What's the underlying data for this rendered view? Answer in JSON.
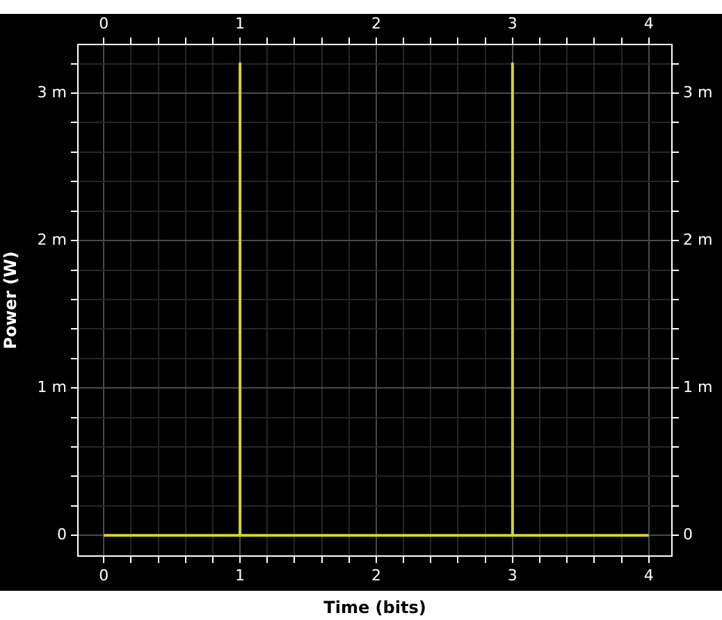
{
  "chart_data": {
    "type": "line",
    "xlabel": "Time (bits)",
    "ylabel": "Power (W)",
    "series": [
      {
        "color": "#d2d23c",
        "x": [
          0,
          1,
          1,
          1,
          3,
          3,
          3,
          4
        ],
        "values": [
          0,
          0,
          3.2,
          0,
          0,
          3.2,
          0,
          0
        ]
      }
    ],
    "xlim": [
      -0.19,
      4.17
    ],
    "xticks": [
      0,
      {
        "value": 0.2,
        "label": null
      },
      {
        "value": 0.4,
        "label": null
      },
      {
        "value": 0.6,
        "label": null
      },
      {
        "value": 0.8,
        "label": null
      },
      1,
      {
        "value": 1.2,
        "label": null
      },
      {
        "value": 1.4,
        "label": null
      },
      {
        "value": 1.6,
        "label": null
      },
      {
        "value": 1.8,
        "label": null
      },
      2,
      {
        "value": 2.2,
        "label": null
      },
      {
        "value": 2.4,
        "label": null
      },
      {
        "value": 2.6,
        "label": null
      },
      {
        "value": 2.8,
        "label": null
      },
      3,
      {
        "value": 3.2,
        "label": null
      },
      {
        "value": 3.4,
        "label": null
      },
      {
        "value": 3.6,
        "label": null
      },
      {
        "value": 3.8,
        "label": null
      },
      4
    ],
    "x2lim": [
      -0.19,
      4.17
    ],
    "x2ticks": [
      0,
      {
        "value": 0.2,
        "label": null
      },
      {
        "value": 0.4,
        "label": null
      },
      {
        "value": 0.6,
        "label": null
      },
      {
        "value": 0.8,
        "label": null
      },
      1,
      {
        "value": 1.2,
        "label": null
      },
      {
        "value": 1.4,
        "label": null
      },
      {
        "value": 1.6,
        "label": null
      },
      {
        "value": 1.8,
        "label": null
      },
      2,
      {
        "value": 2.2,
        "label": null
      },
      {
        "value": 2.4,
        "label": null
      },
      {
        "value": 2.6,
        "label": null
      },
      {
        "value": 2.8,
        "label": null
      },
      3,
      {
        "value": 3.2,
        "label": null
      },
      {
        "value": 3.4,
        "label": null
      },
      {
        "value": 3.6,
        "label": null
      },
      {
        "value": 3.8,
        "label": null
      },
      4
    ],
    "ylim": [
      -0.14,
      3.33
    ],
    "yticks": [
      0,
      {
        "value": 0.2,
        "label": null
      },
      {
        "value": 0.4,
        "label": null
      },
      {
        "value": 0.6,
        "label": null
      },
      {
        "value": 0.8,
        "label": null
      },
      {
        "value": 1,
        "label": "1 m"
      },
      {
        "value": 1.2,
        "label": null
      },
      {
        "value": 1.4,
        "label": null
      },
      {
        "value": 1.6,
        "label": null
      },
      {
        "value": 1.8,
        "label": null
      },
      {
        "value": 2,
        "label": "2 m"
      },
      {
        "value": 2.2,
        "label": null
      },
      {
        "value": 2.4,
        "label": null
      },
      {
        "value": 2.6,
        "label": null
      },
      {
        "value": 2.8,
        "label": null
      },
      {
        "value": 3,
        "label": "3 m"
      },
      {
        "value": 3.2,
        "label": null
      }
    ],
    "y2lim": [
      -0.14,
      3.33
    ],
    "y2ticks": [
      0,
      {
        "value": 0.2,
        "label": null
      },
      {
        "value": 0.4,
        "label": null
      },
      {
        "value": 0.6,
        "label": null
      },
      {
        "value": 0.8,
        "label": null
      },
      {
        "value": 1,
        "label": "1 m"
      },
      {
        "value": 1.2,
        "label": null
      },
      {
        "value": 1.4,
        "label": null
      },
      {
        "value": 1.6,
        "label": null
      },
      {
        "value": 1.8,
        "label": null
      },
      {
        "value": 2,
        "label": "2 m"
      },
      {
        "value": 2.2,
        "label": null
      },
      {
        "value": 2.4,
        "label": null
      },
      {
        "value": 2.6,
        "label": null
      },
      {
        "value": 2.8,
        "label": null
      },
      {
        "value": 3,
        "label": "3 m"
      },
      {
        "value": 3.2,
        "label": null
      }
    ],
    "grid": true,
    "legend": false,
    "marker": "none",
    "line_style": "solid"
  }
}
